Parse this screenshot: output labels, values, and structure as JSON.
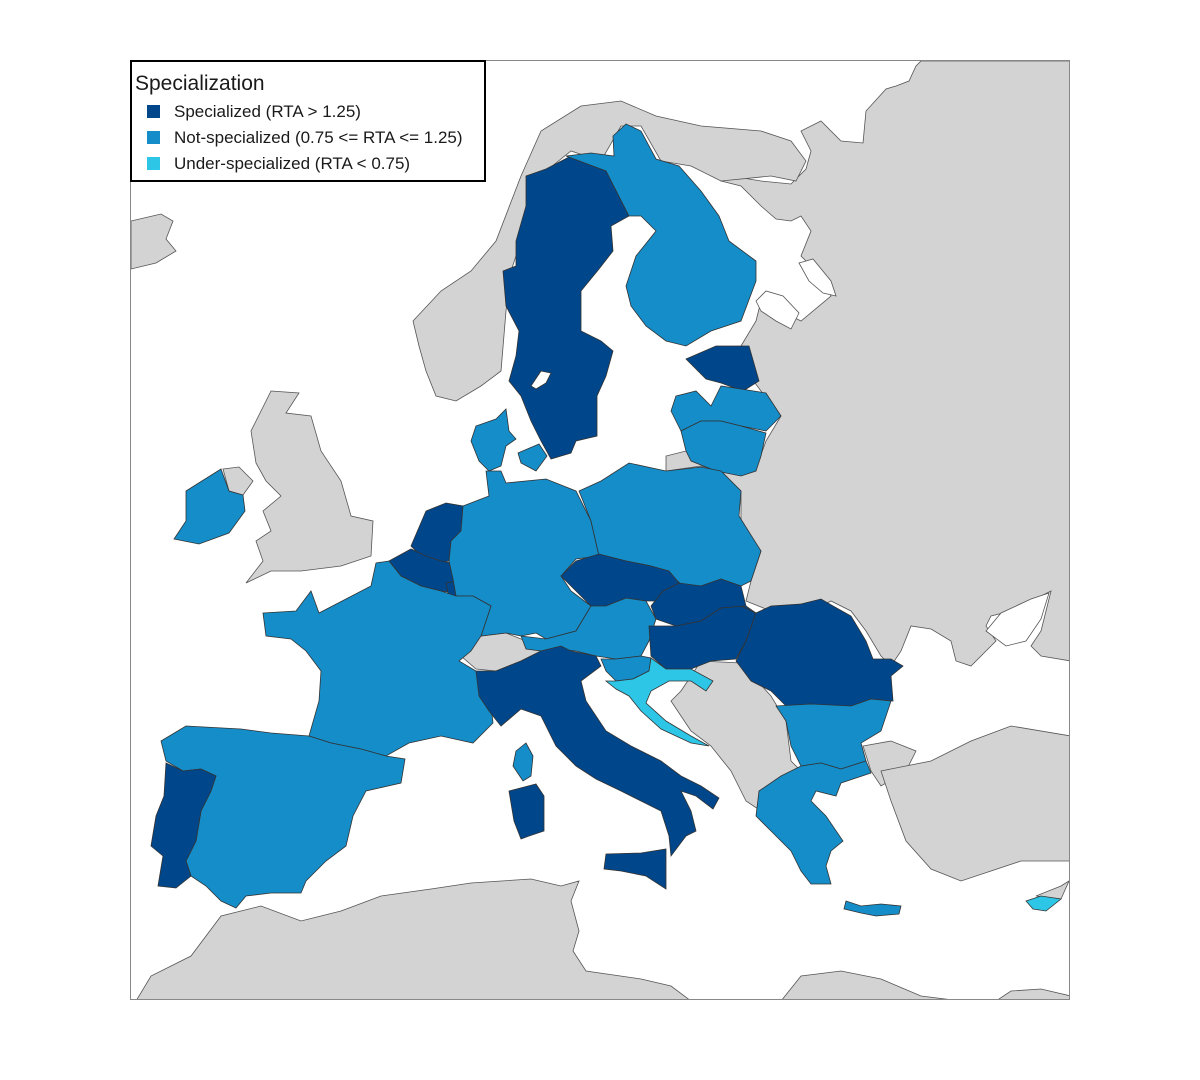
{
  "legend": {
    "title": "Specialization",
    "items": [
      {
        "label": "Specialized (RTA > 1.25)",
        "color": "#00468b"
      },
      {
        "label": "Not-specialized (0.75 <= RTA <= 1.25)",
        "color": "#148dc9"
      },
      {
        "label": "Under-specialized (RTA < 0.75)",
        "color": "#2ec6e6"
      }
    ]
  },
  "colors": {
    "non_eu_land": "#d3d3d3",
    "sea": "#ffffff",
    "border": "#333333"
  },
  "regions": [
    {
      "name": "Sweden",
      "category": "Specialized"
    },
    {
      "name": "Finland",
      "category": "Not-specialized"
    },
    {
      "name": "Estonia",
      "category": "Specialized"
    },
    {
      "name": "Latvia",
      "category": "Not-specialized"
    },
    {
      "name": "Lithuania",
      "category": "Not-specialized"
    },
    {
      "name": "Denmark",
      "category": "Not-specialized"
    },
    {
      "name": "Ireland",
      "category": "Not-specialized"
    },
    {
      "name": "Netherlands",
      "category": "Specialized"
    },
    {
      "name": "Belgium",
      "category": "Specialized"
    },
    {
      "name": "Luxembourg",
      "category": "Specialized"
    },
    {
      "name": "Germany",
      "category": "Not-specialized"
    },
    {
      "name": "Poland",
      "category": "Not-specialized"
    },
    {
      "name": "Czechia",
      "category": "Specialized"
    },
    {
      "name": "Slovakia",
      "category": "Specialized"
    },
    {
      "name": "Austria",
      "category": "Not-specialized"
    },
    {
      "name": "Hungary",
      "category": "Specialized"
    },
    {
      "name": "Slovenia",
      "category": "Not-specialized"
    },
    {
      "name": "Croatia",
      "category": "Under-specialized"
    },
    {
      "name": "Romania",
      "category": "Specialized"
    },
    {
      "name": "Bulgaria",
      "category": "Not-specialized"
    },
    {
      "name": "Greece",
      "category": "Not-specialized"
    },
    {
      "name": "Cyprus",
      "category": "Under-specialized"
    },
    {
      "name": "France",
      "category": "Not-specialized"
    },
    {
      "name": "Spain",
      "category": "Not-specialized"
    },
    {
      "name": "Portugal",
      "category": "Specialized"
    },
    {
      "name": "Italy",
      "category": "Specialized"
    },
    {
      "name": "Malta",
      "category": "Specialized"
    }
  ]
}
